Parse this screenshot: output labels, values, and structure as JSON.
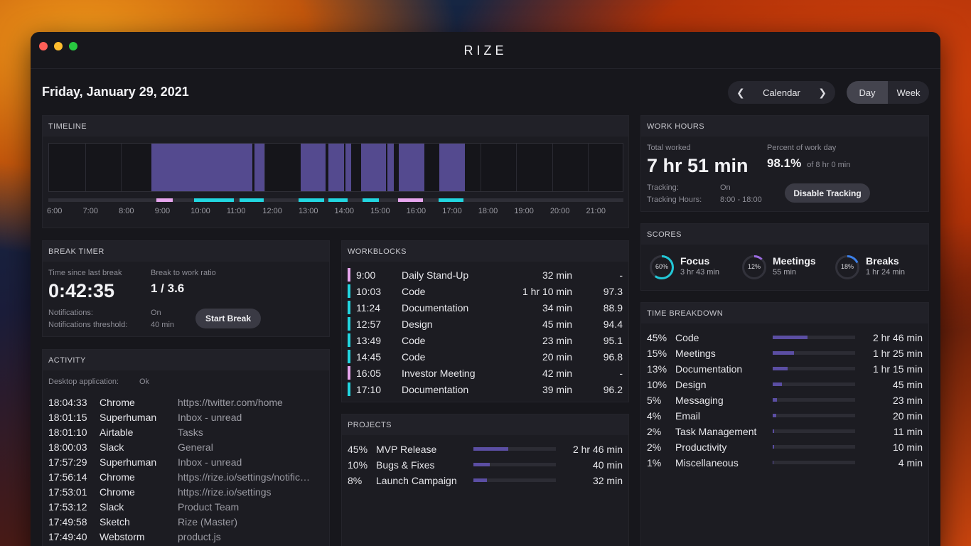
{
  "window": {
    "title": "RIZE"
  },
  "header": {
    "date": "Friday, January 29, 2021",
    "calendar_label": "Calendar",
    "view_day": "Day",
    "view_week": "Week"
  },
  "timeline": {
    "title": "TIMELINE",
    "hours": [
      "6:00",
      "7:00",
      "8:00",
      "9:00",
      "10:00",
      "11:00",
      "12:00",
      "13:00",
      "14:00",
      "15:00",
      "16:00",
      "17:00",
      "18:00",
      "19:00",
      "20:00",
      "21:00"
    ],
    "start_hour": 6,
    "end_hour": 22,
    "blocks": [
      [
        8.85,
        10.25
      ],
      [
        10.2,
        10.98
      ],
      [
        10.98,
        11.65
      ],
      [
        11.72,
        12.0
      ],
      [
        13.0,
        13.7
      ],
      [
        13.77,
        14.2
      ],
      [
        14.25,
        14.4
      ],
      [
        14.68,
        15.38
      ],
      [
        15.42,
        15.6
      ],
      [
        15.73,
        16.45
      ],
      [
        16.85,
        17.57
      ]
    ],
    "markers": [
      {
        "start": 9.0,
        "end": 9.47,
        "color": "#e7a6ee"
      },
      {
        "start": 10.05,
        "end": 11.17,
        "color": "#22d6e0"
      },
      {
        "start": 11.33,
        "end": 12.0,
        "color": "#22d6e0"
      },
      {
        "start": 12.97,
        "end": 13.67,
        "color": "#22d6e0"
      },
      {
        "start": 13.8,
        "end": 14.33,
        "color": "#22d6e0"
      },
      {
        "start": 14.75,
        "end": 15.2,
        "color": "#22d6e0"
      },
      {
        "start": 15.73,
        "end": 16.42,
        "color": "#e7a6ee"
      },
      {
        "start": 16.85,
        "end": 17.55,
        "color": "#22d6e0"
      }
    ]
  },
  "work_hours": {
    "title": "WORK HOURS",
    "total_label": "Total worked",
    "total_value": "7 hr 51 min",
    "percent_label": "Percent of work day",
    "percent_value": "98.1%",
    "percent_of": "of 8 hr 0 min",
    "tracking_label": "Tracking:",
    "tracking_value": "On",
    "hours_label": "Tracking Hours:",
    "hours_value": "8:00 - 18:00",
    "disable_button": "Disable Tracking"
  },
  "scores": {
    "title": "SCORES",
    "items": [
      {
        "name": "Focus",
        "pct_label": "60%",
        "pct": 0.6,
        "time": "3 hr 43 min",
        "color": "#22c7d6"
      },
      {
        "name": "Meetings",
        "pct_label": "12%",
        "pct": 0.12,
        "time": "55 min",
        "color": "#9b6be0"
      },
      {
        "name": "Breaks",
        "pct_label": "18%",
        "pct": 0.18,
        "time": "1 hr 24 min",
        "color": "#3b7fe8"
      }
    ]
  },
  "break_timer": {
    "title": "BREAK TIMER",
    "since_label": "Time since last break",
    "since_value": "0:42:35",
    "ratio_label": "Break to work ratio",
    "ratio_value": "1 / 3.6",
    "notif_label": "Notifications:",
    "notif_value": "On",
    "threshold_label": "Notifications threshold:",
    "threshold_value": "40 min",
    "start_button": "Start Break"
  },
  "workblocks": {
    "title": "WORKBLOCKS",
    "rows": [
      {
        "time": "9:00",
        "name": "Daily Stand-Up",
        "duration": "32 min",
        "score": "-",
        "color": "#e7a6ee"
      },
      {
        "time": "10:03",
        "name": "Code",
        "duration": "1 hr 10 min",
        "score": "97.3",
        "color": "#22d6e0"
      },
      {
        "time": "11:24",
        "name": "Documentation",
        "duration": "34 min",
        "score": "88.9",
        "color": "#22d6e0"
      },
      {
        "time": "12:57",
        "name": "Design",
        "duration": "45 min",
        "score": "94.4",
        "color": "#22d6e0"
      },
      {
        "time": "13:49",
        "name": "Code",
        "duration": "23 min",
        "score": "95.1",
        "color": "#22d6e0"
      },
      {
        "time": "14:45",
        "name": "Code",
        "duration": "20 min",
        "score": "96.8",
        "color": "#22d6e0"
      },
      {
        "time": "16:05",
        "name": "Investor Meeting",
        "duration": "42 min",
        "score": "-",
        "color": "#e7a6ee"
      },
      {
        "time": "17:10",
        "name": "Documentation",
        "duration": "39 min",
        "score": "96.2",
        "color": "#22d6e0"
      }
    ]
  },
  "time_breakdown": {
    "title": "TIME BREAKDOWN",
    "rows": [
      {
        "pct": "45%",
        "name": "Code",
        "time": "2 hr 46 min",
        "fill": 0.42
      },
      {
        "pct": "15%",
        "name": "Meetings",
        "time": "1 hr 25 min",
        "fill": 0.26
      },
      {
        "pct": "13%",
        "name": "Documentation",
        "time": "1 hr 15 min",
        "fill": 0.18
      },
      {
        "pct": "10%",
        "name": "Design",
        "time": "45 min",
        "fill": 0.11
      },
      {
        "pct": "5%",
        "name": "Messaging",
        "time": "23 min",
        "fill": 0.05
      },
      {
        "pct": "4%",
        "name": "Email",
        "time": "20 min",
        "fill": 0.04
      },
      {
        "pct": "2%",
        "name": "Task Management",
        "time": "11 min",
        "fill": 0.02
      },
      {
        "pct": "2%",
        "name": "Productivity",
        "time": "10 min",
        "fill": 0.02
      },
      {
        "pct": "1%",
        "name": "Miscellaneous",
        "time": "4 min",
        "fill": 0.01
      }
    ]
  },
  "activity": {
    "title": "ACTIVITY",
    "desktop_label": "Desktop application:",
    "desktop_value": "Ok",
    "rows": [
      {
        "time": "18:04:33",
        "app": "Chrome",
        "detail": "https://twitter.com/home"
      },
      {
        "time": "18:01:15",
        "app": "Superhuman",
        "detail": "Inbox - unread"
      },
      {
        "time": "18:01:10",
        "app": "Airtable",
        "detail": "Tasks"
      },
      {
        "time": "18:00:03",
        "app": "Slack",
        "detail": "General"
      },
      {
        "time": "17:57:29",
        "app": "Superhuman",
        "detail": "Inbox - unread"
      },
      {
        "time": "17:56:14",
        "app": "Chrome",
        "detail": "https://rize.io/settings/notific…"
      },
      {
        "time": "17:53:01",
        "app": "Chrome",
        "detail": "https://rize.io/settings"
      },
      {
        "time": "17:53:12",
        "app": "Slack",
        "detail": "Product Team"
      },
      {
        "time": "17:49:58",
        "app": "Sketch",
        "detail": "Rize (Master)"
      },
      {
        "time": "17:49:40",
        "app": "Webstorm",
        "detail": "product.js"
      }
    ]
  },
  "projects": {
    "title": "PROJECTS",
    "rows": [
      {
        "pct": "45%",
        "name": "MVP Release",
        "time": "2 hr 46 min",
        "fill": 0.42
      },
      {
        "pct": "10%",
        "name": "Bugs & Fixes",
        "time": "40 min",
        "fill": 0.2
      },
      {
        "pct": "8%",
        "name": "Launch Campaign",
        "time": "32 min",
        "fill": 0.16
      }
    ]
  }
}
